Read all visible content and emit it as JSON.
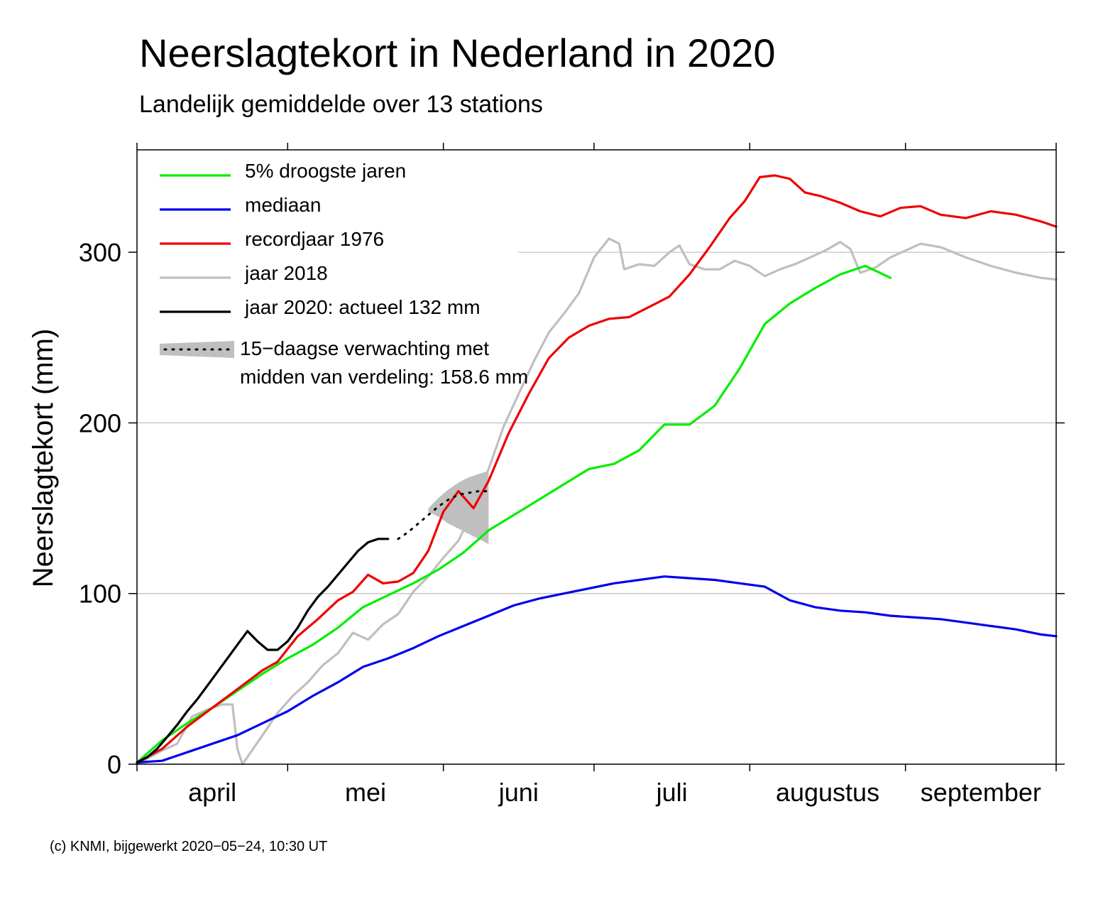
{
  "chart_data": {
    "type": "line",
    "title": "Neerslagtekort in Nederland in 2020",
    "subtitle": "Landelijk gemiddelde over 13 stations",
    "ylabel": "Neerslagtekort (mm)",
    "xlabel": "",
    "ylim": [
      0,
      360
    ],
    "xlim": [
      0,
      183
    ],
    "grid": "horizontal",
    "legend_placement": "top-left",
    "y_ticks": [
      {
        "value": 0,
        "label": "0"
      },
      {
        "value": 100,
        "label": "100"
      },
      {
        "value": 200,
        "label": "200"
      },
      {
        "value": 300,
        "label": "300"
      }
    ],
    "month_boundaries": [
      0,
      30,
      61,
      91,
      122,
      153,
      183
    ],
    "month_labels": [
      {
        "label": "april",
        "position": 15
      },
      {
        "label": "mei",
        "position": 45.5
      },
      {
        "label": "juni",
        "position": 76
      },
      {
        "label": "juli",
        "position": 106.5
      },
      {
        "label": "augustus",
        "position": 137.5
      },
      {
        "label": "september",
        "position": 168
      }
    ],
    "series": [
      {
        "name": "5% droogste jaren",
        "color": "#00ee00",
        "points": [
          [
            0,
            1
          ],
          [
            5,
            14
          ],
          [
            10,
            24
          ],
          [
            15,
            33
          ],
          [
            20,
            43
          ],
          [
            25,
            53
          ],
          [
            30,
            62
          ],
          [
            35,
            70
          ],
          [
            40,
            80
          ],
          [
            45,
            92
          ],
          [
            50,
            99
          ],
          [
            55,
            106
          ],
          [
            60,
            114
          ],
          [
            65,
            124
          ],
          [
            70,
            137
          ],
          [
            75,
            146
          ],
          [
            80,
            155
          ],
          [
            85,
            164
          ],
          [
            90,
            173
          ],
          [
            95,
            176
          ],
          [
            100,
            184
          ],
          [
            105,
            199
          ],
          [
            110,
            199
          ],
          [
            115,
            210
          ],
          [
            120,
            232
          ],
          [
            125,
            258
          ],
          [
            130,
            270
          ],
          [
            135,
            279
          ],
          [
            140,
            287
          ],
          [
            145,
            292
          ],
          [
            150,
            285
          ]
        ]
      },
      {
        "name": "mediaan",
        "color": "#0000ee",
        "points": [
          [
            0,
            1
          ],
          [
            5,
            2
          ],
          [
            10,
            7
          ],
          [
            15,
            12
          ],
          [
            20,
            17
          ],
          [
            25,
            24
          ],
          [
            30,
            31
          ],
          [
            35,
            40
          ],
          [
            40,
            48
          ],
          [
            45,
            57
          ],
          [
            50,
            62
          ],
          [
            55,
            68
          ],
          [
            60,
            75
          ],
          [
            65,
            81
          ],
          [
            70,
            87
          ],
          [
            75,
            93
          ],
          [
            80,
            97
          ],
          [
            85,
            100
          ],
          [
            90,
            103
          ],
          [
            95,
            106
          ],
          [
            100,
            108
          ],
          [
            105,
            110
          ],
          [
            110,
            109
          ],
          [
            115,
            108
          ],
          [
            120,
            106
          ],
          [
            125,
            104
          ],
          [
            130,
            96
          ],
          [
            135,
            92
          ],
          [
            140,
            90
          ],
          [
            145,
            89
          ],
          [
            150,
            87
          ],
          [
            155,
            86
          ],
          [
            160,
            85
          ],
          [
            165,
            83
          ],
          [
            170,
            81
          ],
          [
            175,
            79
          ],
          [
            180,
            76
          ],
          [
            183,
            75
          ]
        ]
      },
      {
        "name": "recordjaar 1976",
        "color": "#ee0000",
        "points": [
          [
            0,
            1
          ],
          [
            5,
            9
          ],
          [
            10,
            22
          ],
          [
            15,
            33
          ],
          [
            20,
            44
          ],
          [
            25,
            55
          ],
          [
            28,
            60
          ],
          [
            32,
            75
          ],
          [
            36,
            85
          ],
          [
            40,
            96
          ],
          [
            43,
            101
          ],
          [
            46,
            111
          ],
          [
            49,
            106
          ],
          [
            52,
            107
          ],
          [
            55,
            112
          ],
          [
            58,
            125
          ],
          [
            61,
            148
          ],
          [
            64,
            160
          ],
          [
            67,
            150
          ],
          [
            70,
            166
          ],
          [
            74,
            194
          ],
          [
            78,
            217
          ],
          [
            82,
            238
          ],
          [
            86,
            250
          ],
          [
            90,
            257
          ],
          [
            94,
            261
          ],
          [
            98,
            262
          ],
          [
            102,
            268
          ],
          [
            106,
            274
          ],
          [
            110,
            287
          ],
          [
            114,
            303
          ],
          [
            118,
            320
          ],
          [
            121,
            330
          ],
          [
            124,
            344
          ],
          [
            127,
            345
          ],
          [
            130,
            343
          ],
          [
            133,
            335
          ],
          [
            136,
            333
          ],
          [
            140,
            329
          ],
          [
            144,
            324
          ],
          [
            148,
            321
          ],
          [
            152,
            326
          ],
          [
            156,
            327
          ],
          [
            160,
            322
          ],
          [
            165,
            320
          ],
          [
            170,
            324
          ],
          [
            175,
            322
          ],
          [
            180,
            318
          ],
          [
            183,
            315
          ]
        ]
      },
      {
        "name": "jaar 2018",
        "color": "#bfbfbf",
        "points": [
          [
            0,
            0
          ],
          [
            5,
            8
          ],
          [
            8,
            12
          ],
          [
            11,
            28
          ],
          [
            14,
            32
          ],
          [
            17,
            35
          ],
          [
            19,
            35
          ],
          [
            20,
            9
          ],
          [
            21,
            0
          ],
          [
            25,
            17
          ],
          [
            28,
            30
          ],
          [
            31,
            40
          ],
          [
            34,
            48
          ],
          [
            37,
            58
          ],
          [
            40,
            65
          ],
          [
            43,
            77
          ],
          [
            46,
            73
          ],
          [
            49,
            82
          ],
          [
            52,
            88
          ],
          [
            55,
            101
          ],
          [
            58,
            110
          ],
          [
            61,
            121
          ],
          [
            64,
            131
          ],
          [
            67,
            149
          ],
          [
            70,
            173
          ],
          [
            73,
            198
          ],
          [
            76,
            217
          ],
          [
            79,
            236
          ],
          [
            82,
            253
          ],
          [
            85,
            264
          ],
          [
            88,
            276
          ],
          [
            91,
            297
          ],
          [
            94,
            308
          ],
          [
            96,
            305
          ],
          [
            97,
            290
          ],
          [
            100,
            293
          ],
          [
            103,
            292
          ],
          [
            106,
            300
          ],
          [
            108,
            304
          ],
          [
            110,
            293
          ],
          [
            113,
            290
          ],
          [
            116,
            290
          ],
          [
            119,
            295
          ],
          [
            122,
            292
          ],
          [
            125,
            286
          ],
          [
            128,
            290
          ],
          [
            131,
            293
          ],
          [
            134,
            297
          ],
          [
            137,
            301
          ],
          [
            140,
            306
          ],
          [
            142,
            302
          ],
          [
            144,
            288
          ],
          [
            147,
            291
          ],
          [
            150,
            297
          ],
          [
            153,
            301
          ],
          [
            156,
            305
          ],
          [
            160,
            303
          ],
          [
            165,
            297
          ],
          [
            170,
            292
          ],
          [
            175,
            288
          ],
          [
            180,
            285
          ],
          [
            183,
            284
          ]
        ]
      },
      {
        "name": "jaar 2020: actueel 132 mm",
        "color": "#000000",
        "points": [
          [
            0,
            1
          ],
          [
            2,
            4
          ],
          [
            4,
            9
          ],
          [
            6,
            16
          ],
          [
            8,
            23
          ],
          [
            10,
            31
          ],
          [
            12,
            38
          ],
          [
            14,
            46
          ],
          [
            16,
            54
          ],
          [
            18,
            62
          ],
          [
            20,
            70
          ],
          [
            22,
            78
          ],
          [
            24,
            72
          ],
          [
            26,
            67
          ],
          [
            28,
            67
          ],
          [
            30,
            72
          ],
          [
            32,
            80
          ],
          [
            34,
            90
          ],
          [
            36,
            98
          ],
          [
            38,
            104
          ],
          [
            40,
            111
          ],
          [
            42,
            118
          ],
          [
            44,
            125
          ],
          [
            46,
            130
          ],
          [
            48,
            132
          ],
          [
            50,
            132
          ]
        ]
      }
    ],
    "forecast": {
      "name": "15-daagse verwachting met midden van verdeling: 158.6 mm",
      "label_line1": "15−daagse verwachting met",
      "label_line2": "midden van verdeling: 158.6 mm",
      "color": "#bfbfbf",
      "median": [
        [
          52,
          132
        ],
        [
          54,
          136
        ],
        [
          56,
          141
        ],
        [
          58,
          146
        ],
        [
          60,
          151
        ],
        [
          62,
          155
        ],
        [
          64,
          158
        ],
        [
          66,
          159
        ],
        [
          68,
          160
        ],
        [
          70,
          160
        ]
      ],
      "lower": [
        [
          58,
          148
        ],
        [
          60,
          145
        ],
        [
          62,
          141
        ],
        [
          64,
          138
        ],
        [
          66,
          135
        ],
        [
          68,
          132
        ],
        [
          70,
          129
        ]
      ],
      "upper": [
        [
          58,
          150
        ],
        [
          60,
          156
        ],
        [
          62,
          161
        ],
        [
          64,
          165
        ],
        [
          66,
          168
        ],
        [
          68,
          170
        ],
        [
          70,
          172
        ]
      ]
    }
  },
  "legend": [
    {
      "label": "5% droogste jaren",
      "color": "#00ee00"
    },
    {
      "label": "mediaan",
      "color": "#0000ee"
    },
    {
      "label": "recordjaar 1976",
      "color": "#ee0000"
    },
    {
      "label": "jaar 2018",
      "color": "#bfbfbf"
    },
    {
      "label": "jaar 2020: actueel 132 mm",
      "color": "#000000"
    }
  ],
  "footer": "(c) KNMI, bijgewerkt 2020−05−24, 10:30 UT"
}
